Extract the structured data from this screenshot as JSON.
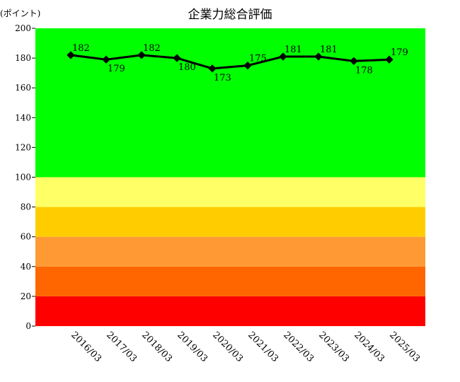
{
  "chart_data": {
    "type": "line",
    "title": "企業力総合評価",
    "ylabel": "(ポイント)",
    "xlabel": "",
    "ylim": [
      0,
      200
    ],
    "y_ticks": [
      0,
      20,
      40,
      60,
      80,
      100,
      120,
      140,
      160,
      180,
      200
    ],
    "categories": [
      "2016/03",
      "2017/03",
      "2018/03",
      "2019/03",
      "2020/03",
      "2021/03",
      "2022/03",
      "2023/03",
      "2024/03",
      "2025/03"
    ],
    "series": [
      {
        "name": "",
        "values": [
          182,
          179,
          182,
          180,
          173,
          175,
          181,
          181,
          178,
          179
        ],
        "color": "#000000"
      }
    ],
    "background_bands": [
      {
        "from": 0,
        "to": 20,
        "color": "#ff0000"
      },
      {
        "from": 20,
        "to": 40,
        "color": "#ff6600"
      },
      {
        "from": 40,
        "to": 60,
        "color": "#ff9933"
      },
      {
        "from": 60,
        "to": 80,
        "color": "#ffcc00"
      },
      {
        "from": 80,
        "to": 100,
        "color": "#ffff66"
      },
      {
        "from": 100,
        "to": 200,
        "color": "#00ff00"
      }
    ],
    "grid": false,
    "legend": "none"
  }
}
